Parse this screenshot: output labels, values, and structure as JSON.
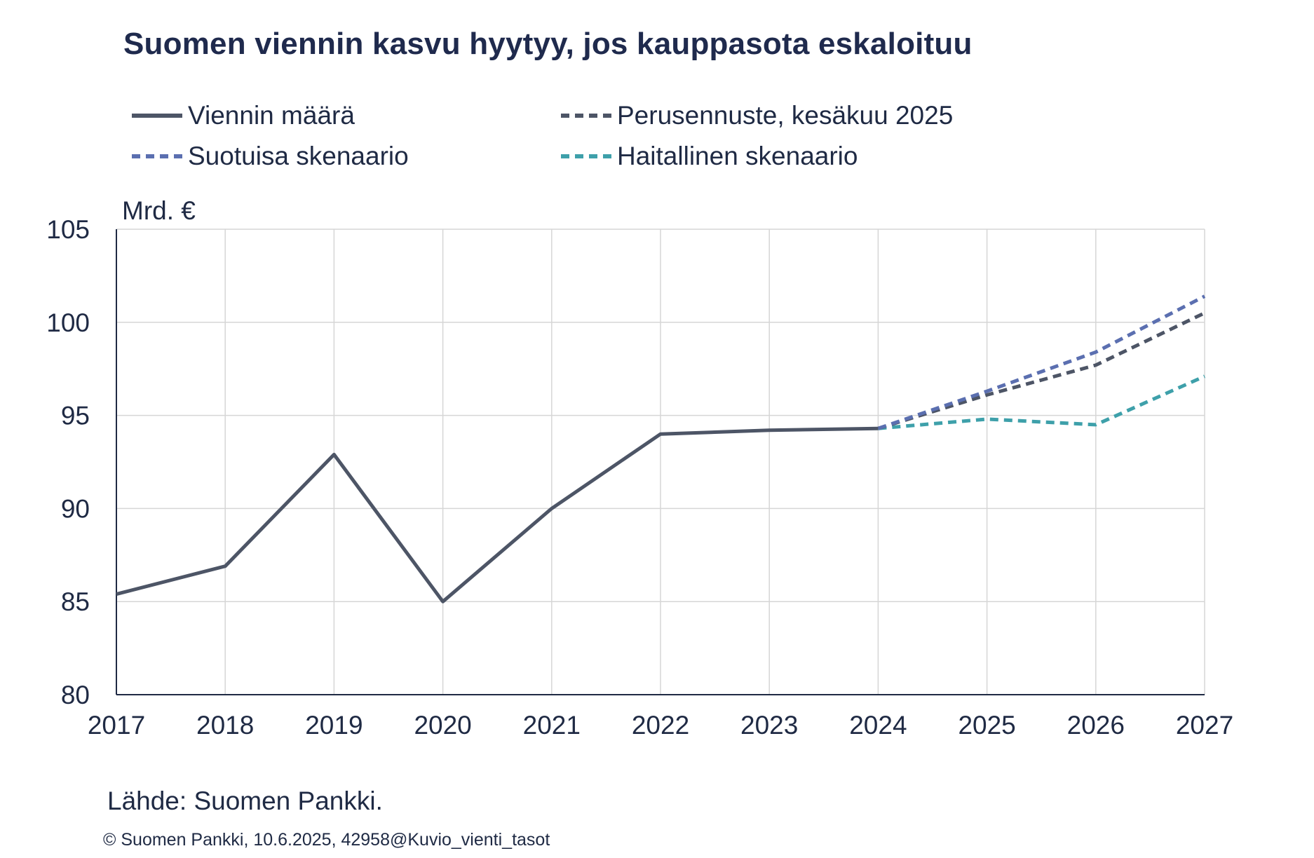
{
  "title": "Suomen viennin kasvu hyytyy, jos kauppasota eskaloituu",
  "source": "Lähde: Suomen Pankki.",
  "copyright": "© Suomen Pankki, 10.6.2025, 42958@Kuvio_vienti_tasot",
  "chart_data": {
    "type": "line",
    "title": "Suomen viennin kasvu hyytyy, jos kauppasota eskaloituu",
    "ylabel": "Mrd. €",
    "xlabel": "",
    "ylim": [
      80,
      105
    ],
    "yticks": [
      80,
      85,
      90,
      95,
      100,
      105
    ],
    "x": [
      "2017",
      "2018",
      "2019",
      "2020",
      "2021",
      "2022",
      "2023",
      "2024",
      "2025",
      "2026",
      "2027"
    ],
    "grid": true,
    "legend_position": "top",
    "series": [
      {
        "name": "Viennin määrä",
        "style": "solid",
        "color": "#4d5566",
        "x": [
          "2017",
          "2018",
          "2019",
          "2020",
          "2021",
          "2022",
          "2023",
          "2024"
        ],
        "values": [
          85.4,
          86.9,
          92.9,
          85.0,
          90.0,
          94.0,
          94.2,
          94.3
        ]
      },
      {
        "name": "Perusennuste, kesäkuu 2025",
        "style": "dashed",
        "color": "#4d5566",
        "x": [
          "2024",
          "2025",
          "2026",
          "2027"
        ],
        "values": [
          94.3,
          96.1,
          97.7,
          100.5
        ]
      },
      {
        "name": "Suotuisa skenaario",
        "style": "dashed",
        "color": "#5b6fb0",
        "x": [
          "2024",
          "2025",
          "2026",
          "2027"
        ],
        "values": [
          94.3,
          96.3,
          98.4,
          101.4
        ]
      },
      {
        "name": "Haitallinen skenaario",
        "style": "dashed",
        "color": "#3ea0aa",
        "x": [
          "2024",
          "2025",
          "2026",
          "2027"
        ],
        "values": [
          94.3,
          94.8,
          94.5,
          97.1
        ]
      }
    ]
  }
}
